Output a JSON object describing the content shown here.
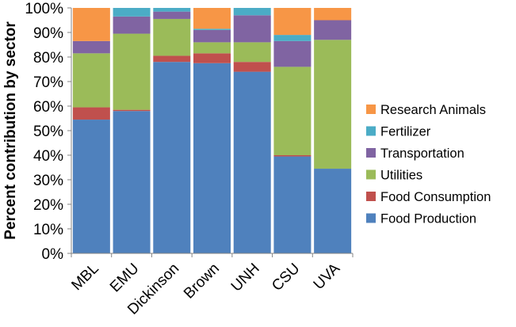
{
  "chart_data": {
    "type": "bar",
    "stacked": true,
    "categories": [
      "MBL",
      "EMU",
      "Dickinson",
      "Brown",
      "UNH",
      "CSU",
      "UVA"
    ],
    "ylabel": "Percent contribution by sector",
    "xlabel": "",
    "ylim": [
      0,
      100
    ],
    "yticks": [
      "0%",
      "10%",
      "20%",
      "30%",
      "40%",
      "50%",
      "60%",
      "70%",
      "80%",
      "90%",
      "100%"
    ],
    "grid": false,
    "legend_position": "right",
    "series": [
      {
        "name": "Food Production",
        "color": "#4F81BD",
        "values": [
          54.5,
          58,
          78,
          77.5,
          74,
          39.5,
          34.5
        ]
      },
      {
        "name": "Food Consumption",
        "color": "#C0504D",
        "values": [
          5,
          0.5,
          2.5,
          4,
          4,
          0.5,
          0
        ]
      },
      {
        "name": "Utilities",
        "color": "#9BBB59",
        "values": [
          22,
          31,
          15,
          4.5,
          8,
          36,
          52.5
        ]
      },
      {
        "name": "Transportation",
        "color": "#8064A2",
        "values": [
          5,
          7,
          3,
          5,
          11,
          10.5,
          8
        ]
      },
      {
        "name": "Fertilizer",
        "color": "#4BACC6",
        "values": [
          0,
          3.5,
          1.5,
          0.5,
          3,
          2.5,
          0
        ]
      },
      {
        "name": "Research Animals",
        "color": "#F79646",
        "values": [
          13.5,
          0,
          0,
          8.5,
          0,
          11,
          5
        ]
      }
    ]
  }
}
